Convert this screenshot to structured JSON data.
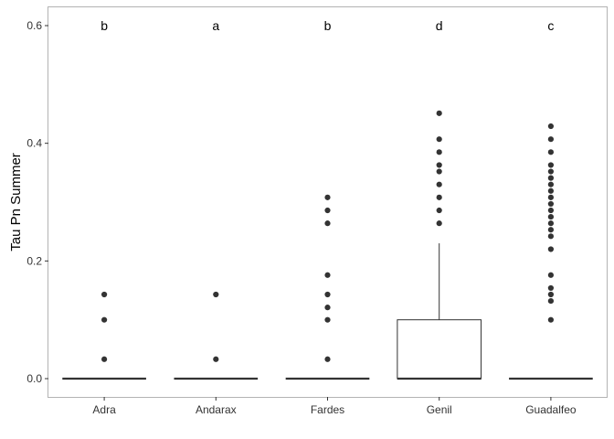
{
  "chart_data": {
    "type": "box",
    "title": "",
    "xlabel": "",
    "ylabel": "Tau Pn Summer",
    "ylim": [
      -0.02,
      0.63
    ],
    "yticks": [
      0.0,
      0.2,
      0.4,
      0.6
    ],
    "ytick_labels": [
      "0.0",
      "0.2",
      "0.4",
      "0.6"
    ],
    "grid": false,
    "legend": "none",
    "categories": [
      "Adra",
      "Andarax",
      "Fardes",
      "Genil",
      "Guadalfeo"
    ],
    "group_letters": [
      "b",
      "a",
      "b",
      "d",
      "c"
    ],
    "letter_y": 0.6,
    "boxes": [
      {
        "category": "Adra",
        "q1": 0.0,
        "median": 0.0,
        "q3": 0.0,
        "whisker_low": 0.0,
        "whisker_high": 0.0,
        "outliers": [
          0.033,
          0.1,
          0.143
        ]
      },
      {
        "category": "Andarax",
        "q1": 0.0,
        "median": 0.0,
        "q3": 0.0,
        "whisker_low": 0.0,
        "whisker_high": 0.0,
        "outliers": [
          0.033,
          0.143
        ]
      },
      {
        "category": "Fardes",
        "q1": 0.0,
        "median": 0.0,
        "q3": 0.0,
        "whisker_low": 0.0,
        "whisker_high": 0.0,
        "outliers": [
          0.033,
          0.1,
          0.121,
          0.143,
          0.176,
          0.264,
          0.286,
          0.308
        ]
      },
      {
        "category": "Genil",
        "q1": 0.0,
        "median": 0.0,
        "q3": 0.1,
        "whisker_low": 0.0,
        "whisker_high": 0.23,
        "outliers": [
          0.264,
          0.286,
          0.308,
          0.33,
          0.352,
          0.363,
          0.385,
          0.407,
          0.451
        ]
      },
      {
        "category": "Guadalfeo",
        "q1": 0.0,
        "median": 0.0,
        "q3": 0.0,
        "whisker_low": 0.0,
        "whisker_high": 0.0,
        "outliers": [
          0.1,
          0.132,
          0.143,
          0.154,
          0.176,
          0.22,
          0.242,
          0.253,
          0.264,
          0.275,
          0.286,
          0.297,
          0.308,
          0.319,
          0.33,
          0.341,
          0.352,
          0.363,
          0.385,
          0.407,
          0.429
        ]
      }
    ],
    "colors": {
      "box_line": "#333333",
      "box_fill": "#ffffff",
      "outlier": "#333333",
      "panel_border": "#b3b3b3"
    }
  }
}
